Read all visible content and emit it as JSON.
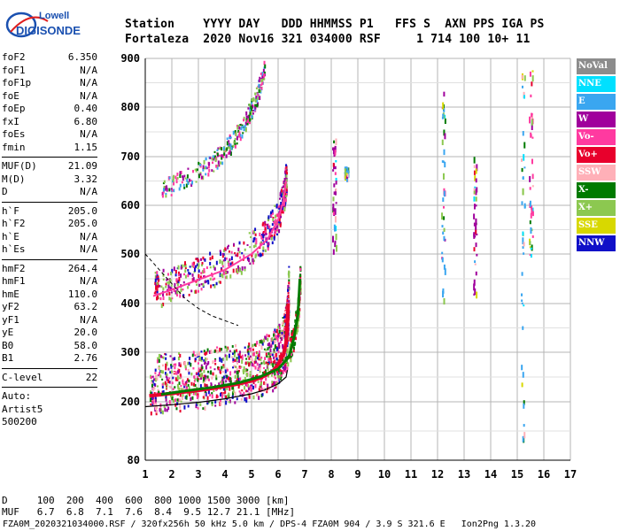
{
  "logo": {
    "line1": "Lowell",
    "line2": "DIGISONDE"
  },
  "header": {
    "line1": "Station    YYYY DAY   DDD HHMMSS P1   FFS S  AXN PPS IGA PS",
    "line2": "Fortaleza  2020 Nov16 321 034000 RSF     1 714 100 10+ 11"
  },
  "params": {
    "group1": [
      {
        "k": "foF2",
        "v": "6.350"
      },
      {
        "k": "foF1",
        "v": "N/A"
      },
      {
        "k": "foF1p",
        "v": "N/A"
      },
      {
        "k": "foE",
        "v": "N/A"
      },
      {
        "k": "foEp",
        "v": "0.40"
      },
      {
        "k": "fxI",
        "v": "6.80"
      },
      {
        "k": "foEs",
        "v": "N/A"
      },
      {
        "k": "fmin",
        "v": "1.15"
      }
    ],
    "group2": [
      {
        "k": "MUF(D)",
        "v": "21.09"
      },
      {
        "k": "M(D)",
        "v": "3.32"
      },
      {
        "k": "D",
        "v": "N/A"
      }
    ],
    "group3": [
      {
        "k": "h`F",
        "v": "205.0"
      },
      {
        "k": "h`F2",
        "v": "205.0"
      },
      {
        "k": "h`E",
        "v": "N/A"
      },
      {
        "k": "h`Es",
        "v": "N/A"
      }
    ],
    "group4": [
      {
        "k": "hmF2",
        "v": "264.4"
      },
      {
        "k": "hmF1",
        "v": "N/A"
      },
      {
        "k": "hmE",
        "v": "110.0"
      },
      {
        "k": "yF2",
        "v": "63.2"
      },
      {
        "k": "yF1",
        "v": "N/A"
      },
      {
        "k": "yE",
        "v": "20.0"
      },
      {
        "k": "B0",
        "v": "58.0"
      },
      {
        "k": "B1",
        "v": "2.76"
      }
    ],
    "group5": [
      {
        "k": "C-level",
        "v": "22"
      }
    ],
    "footer_lines": [
      "Auto:",
      "Artist5",
      "500200"
    ]
  },
  "legend": [
    {
      "label": "NoVal",
      "color": "#8c8c8c"
    },
    {
      "label": "NNE",
      "color": "#00e0ff"
    },
    {
      "label": "E",
      "color": "#3aa6f0"
    },
    {
      "label": "W",
      "color": "#a0009c"
    },
    {
      "label": "Vo-",
      "color": "#ff3aa0"
    },
    {
      "label": "Vo+",
      "color": "#e8002c"
    },
    {
      "label": "SSW",
      "color": "#ffb0b8"
    },
    {
      "label": "X-",
      "color": "#007a00"
    },
    {
      "label": "X+",
      "color": "#8cc850"
    },
    {
      "label": "SSE",
      "color": "#d8d800"
    },
    {
      "label": "NNW",
      "color": "#1010c8"
    }
  ],
  "bottom": {
    "d_line": "D     100  200  400  600  800 1000 1500 3000 [km]",
    "muf_line": "MUF   6.7  6.8  7.1  7.6  8.4  9.5 12.7 21.1 [MHz]",
    "info_line": "FZA0M_2020321034000.RSF / 320fx256h 50 kHz 5.0 km / DPS-4 FZA0M 904 / 3.9 S 321.6 E   Ion2Png 1.3.20"
  },
  "chart_data": {
    "type": "scatter",
    "xlim": [
      1,
      17
    ],
    "ylim": [
      80,
      900
    ],
    "x_ticks": [
      "1",
      "2",
      "3",
      "4",
      "5",
      "6",
      "7",
      "8",
      "9",
      "10",
      "11",
      "12",
      "13",
      "14",
      "15",
      "16",
      "17"
    ],
    "y_ticks": [
      "80",
      "200",
      "300",
      "400",
      "500",
      "600",
      "700",
      "800",
      "900"
    ],
    "y_tick_values": [
      80,
      200,
      300,
      400,
      500,
      600,
      700,
      800,
      900
    ],
    "grid": true,
    "traces": {
      "o_trace_F": [
        [
          1.15,
          212
        ],
        [
          1.5,
          214
        ],
        [
          2,
          217
        ],
        [
          2.5,
          220
        ],
        [
          3,
          223
        ],
        [
          3.5,
          227
        ],
        [
          4,
          231
        ],
        [
          4.5,
          236
        ],
        [
          5,
          242
        ],
        [
          5.4,
          250
        ],
        [
          5.8,
          262
        ],
        [
          6.0,
          275
        ],
        [
          6.2,
          295
        ],
        [
          6.3,
          320
        ],
        [
          6.35,
          360
        ],
        [
          6.38,
          400
        ]
      ],
      "x_trace_F": [
        [
          1.6,
          215
        ],
        [
          2.5,
          222
        ],
        [
          3.5,
          229
        ],
        [
          4.5,
          238
        ],
        [
          5.3,
          250
        ],
        [
          6,
          266
        ],
        [
          6.4,
          290
        ],
        [
          6.6,
          330
        ],
        [
          6.75,
          380
        ],
        [
          6.8,
          430
        ],
        [
          6.82,
          450
        ]
      ],
      "o_trace_2F": [
        [
          1.3,
          415
        ],
        [
          2,
          428
        ],
        [
          3,
          448
        ],
        [
          4,
          468
        ],
        [
          5,
          500
        ],
        [
          5.6,
          530
        ],
        [
          6.0,
          570
        ],
        [
          6.2,
          610
        ],
        [
          6.3,
          650
        ]
      ],
      "o_trace_3F": [
        [
          1.6,
          625
        ],
        [
          2.5,
          650
        ],
        [
          3.5,
          680
        ],
        [
          4.2,
          720
        ],
        [
          4.8,
          770
        ],
        [
          5.2,
          820
        ],
        [
          5.5,
          880
        ]
      ],
      "profile": [
        [
          1.0,
          190
        ],
        [
          2,
          194
        ],
        [
          3,
          199
        ],
        [
          4,
          206
        ],
        [
          5,
          216
        ],
        [
          5.5,
          224
        ],
        [
          6,
          236
        ],
        [
          6.3,
          250
        ],
        [
          6.35,
          264
        ]
      ],
      "dashed_line": [
        [
          1.0,
          500
        ],
        [
          1.5,
          470
        ],
        [
          2.0,
          440
        ],
        [
          2.5,
          410
        ],
        [
          3,
          390
        ],
        [
          3.5,
          375
        ],
        [
          4,
          365
        ],
        [
          4.5,
          355
        ]
      ]
    },
    "scatter_columns": [
      {
        "x": 8.1,
        "ymin": 510,
        "ymax": 740,
        "color": "#a0009c"
      },
      {
        "x": 8.55,
        "ymin": 660,
        "ymax": 680,
        "color": "#3aa6f0"
      },
      {
        "x": 12.2,
        "ymin": 400,
        "ymax": 860,
        "color": "#3aa6f0"
      },
      {
        "x": 13.4,
        "ymin": 420,
        "ymax": 700,
        "color": "#a0009c"
      },
      {
        "x": 15.2,
        "ymin": 120,
        "ymax": 890,
        "color": "#3aa6f0"
      },
      {
        "x": 15.5,
        "ymin": 500,
        "ymax": 890,
        "color": "#ff3aa0"
      }
    ]
  }
}
